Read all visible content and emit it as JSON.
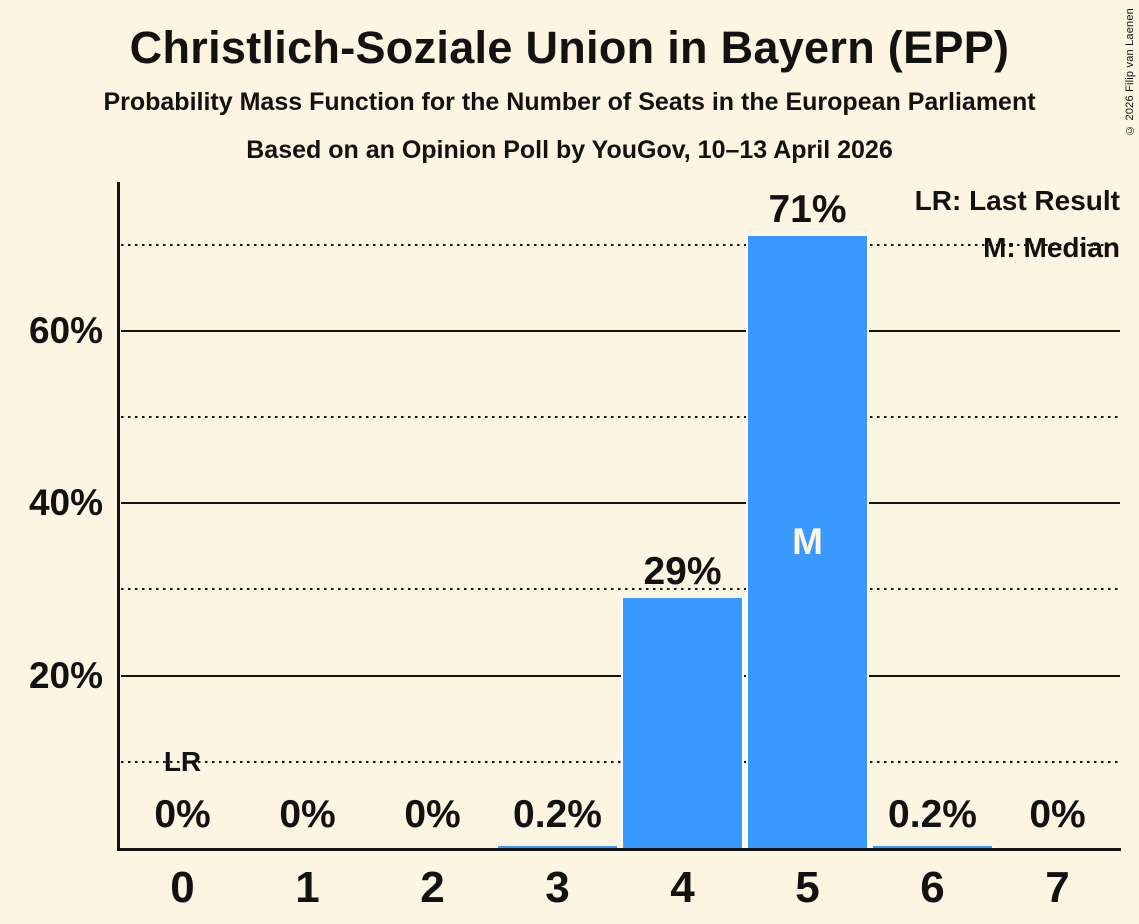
{
  "title": "Christlich-Soziale Union in Bayern (EPP)",
  "subtitle": "Probability Mass Function for the Number of Seats in the European Parliament",
  "source_line": "Based on an Opinion Poll by YouGov, 10–13 April 2026",
  "copyright": "© 2026 Filip van Laenen",
  "legend": {
    "last_result": "LR: Last Result",
    "median": "M: Median"
  },
  "colors": {
    "background": "#FCF5E1",
    "bar": "#3999FF",
    "bar_separator": "#FFFFFF",
    "text": "#121212",
    "median_label": "#FCF5E1"
  },
  "chart_data": {
    "type": "bar",
    "title": "Christlich-Soziale Union in Bayern (EPP)",
    "categories": [
      "0",
      "1",
      "2",
      "3",
      "4",
      "5",
      "6",
      "7"
    ],
    "values": [
      0,
      0,
      0,
      0.2,
      29,
      71,
      0.2,
      0
    ],
    "bar_labels": [
      "0%",
      "0%",
      "0%",
      "0.2%",
      "29%",
      "71%",
      "0.2%",
      "0%"
    ],
    "median_category": "5",
    "median_marker": "M",
    "last_result_category": "0",
    "last_result_marker": "LR",
    "last_result_marker_y_pct": 10,
    "y_axis": {
      "ticks": [
        20,
        40,
        60
      ],
      "tick_labels": [
        "20%",
        "40%",
        "60%"
      ],
      "solid_gridlines": [
        20,
        40,
        60
      ],
      "dotted_gridlines": [
        10,
        30,
        50,
        70
      ],
      "range_pct": [
        0,
        77
      ]
    },
    "legend_position": "top-right",
    "grid": "horizontal"
  }
}
